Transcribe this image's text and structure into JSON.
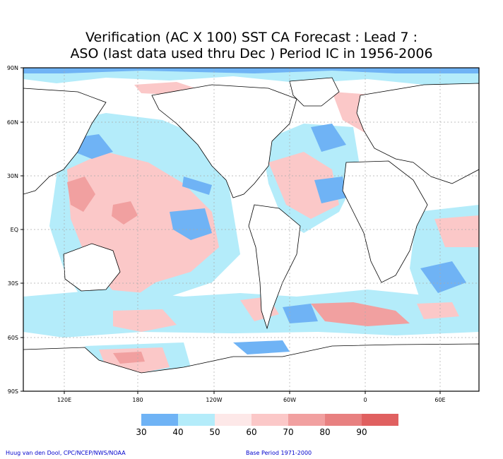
{
  "title": {
    "line1": "Verification (AC X 100) SST CA Forecast : Lead 7 :",
    "line2": "ASO (last data used thru Dec ) Period IC in 1956-2006"
  },
  "axes": {
    "lat_labels": [
      "90N",
      "60N",
      "30N",
      "EQ",
      "30S",
      "60S",
      "90S"
    ],
    "lon_labels": [
      "120E",
      "180",
      "120W",
      "60W",
      "0",
      "60E"
    ]
  },
  "legend": {
    "colors": [
      "#6fb3f5",
      "#b4ecfa",
      "#fde8e8",
      "#fbc8c8",
      "#f1a0a0",
      "#e88080",
      "#e06060"
    ],
    "labels": [
      "30",
      "40",
      "50",
      "60",
      "70",
      "80",
      "90"
    ]
  },
  "footer": {
    "credit": "Huug van den Dool, CPC/NCEP/NWS/NOAA",
    "base_period": "Base Period 1971-2000"
  },
  "colors": {
    "blue": "#6fb3f5",
    "cyan": "#b4ecfa",
    "pink": "#fbc8c8",
    "red": "#f1a0a0",
    "coast": "#000000"
  }
}
